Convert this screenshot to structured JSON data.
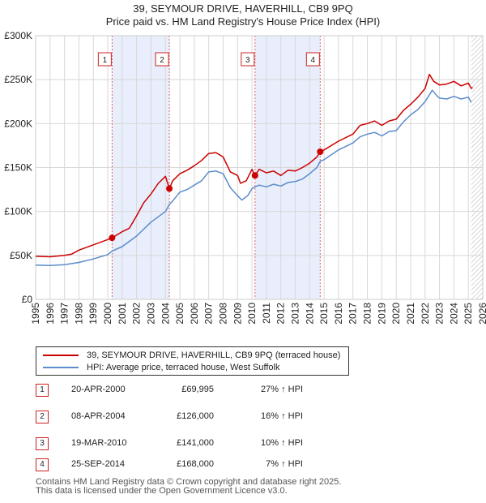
{
  "header": {
    "title": "39, SEYMOUR DRIVE, HAVERHILL, CB9 9PQ",
    "subtitle": "Price paid vs. HM Land Registry's House Price Index (HPI)"
  },
  "legend": {
    "property_label": "39, SEYMOUR DRIVE, HAVERHILL, CB9 9PQ (terraced house)",
    "hpi_label": "HPI: Average price, terraced house, West Suffolk"
  },
  "transactions": [
    {
      "num": "1",
      "date": "20-APR-2000",
      "price": "£69,995",
      "hpi": "27% ↑ HPI"
    },
    {
      "num": "2",
      "date": "08-APR-2004",
      "price": "£126,000",
      "hpi": "16% ↑ HPI"
    },
    {
      "num": "3",
      "date": "19-MAR-2010",
      "price": "£141,000",
      "hpi": "10% ↑ HPI"
    },
    {
      "num": "4",
      "date": "25-SEP-2014",
      "price": "£168,000",
      "hpi": "7% ↑ HPI"
    }
  ],
  "footer": {
    "line1": "Contains HM Land Registry data © Crown copyright and database right 2025.",
    "line2": "This data is licensed under the Open Government Licence v3.0."
  },
  "colors": {
    "property": "#cc0000",
    "hpi": "#5b8ccc",
    "band": "#e8eefb",
    "marker_line": "#e06060",
    "grid": "#d8d8d8"
  },
  "chart_data": {
    "type": "line",
    "title": "39, SEYMOUR DRIVE, HAVERHILL, CB9 9PQ",
    "subtitle": "Price paid vs. HM Land Registry's House Price Index (HPI)",
    "xlabel": "",
    "ylabel": "",
    "xlim": [
      1995,
      2026
    ],
    "ylim": [
      0,
      300000
    ],
    "x_ticks": [
      1995,
      1996,
      1997,
      1998,
      1999,
      2000,
      2001,
      2002,
      2003,
      2004,
      2005,
      2006,
      2007,
      2008,
      2009,
      2010,
      2011,
      2012,
      2013,
      2014,
      2015,
      2016,
      2017,
      2018,
      2019,
      2020,
      2021,
      2022,
      2023,
      2024,
      2025,
      2026
    ],
    "x_tick_labels": [
      "1995",
      "1996",
      "1997",
      "1998",
      "1999",
      "2000",
      "2001",
      "2002",
      "2003",
      "2004",
      "2005",
      "2006",
      "2007",
      "2008",
      "2009",
      "2010",
      "2011",
      "2012",
      "2013",
      "2014",
      "2015",
      "2016",
      "2017",
      "2018",
      "2019",
      "2020",
      "2021",
      "2022",
      "2023",
      "2024",
      "2025",
      "2026"
    ],
    "y_ticks": [
      0,
      50000,
      100000,
      150000,
      200000,
      250000,
      300000
    ],
    "y_tick_labels": [
      "£0",
      "£50K",
      "£100K",
      "£150K",
      "£200K",
      "£250K",
      "£300K"
    ],
    "grid": true,
    "shaded_ranges": [
      [
        2000.3,
        2004.27
      ],
      [
        2010.21,
        2014.73
      ]
    ],
    "future_hatch_from": 2025.2,
    "sale_markers": [
      {
        "label": "1",
        "x": 2000.3,
        "value": 69995
      },
      {
        "label": "2",
        "x": 2004.27,
        "value": 126000
      },
      {
        "label": "3",
        "x": 2010.21,
        "value": 141000
      },
      {
        "label": "4",
        "x": 2014.73,
        "value": 168000
      }
    ],
    "series": [
      {
        "name": "39, SEYMOUR DRIVE, HAVERHILL, CB9 9PQ (terraced house)",
        "x": [
          1995,
          1996,
          1997,
          1997.5,
          1998,
          1999,
          2000,
          2000.3,
          2001,
          2001.5,
          2002,
          2002.5,
          2003,
          2003.5,
          2004,
          2004.27,
          2004.5,
          2005,
          2005.5,
          2006,
          2006.5,
          2007,
          2007.5,
          2008,
          2008.5,
          2009,
          2009.2,
          2009.6,
          2010,
          2010.21,
          2010.5,
          2011,
          2011.5,
          2012,
          2012.5,
          2013,
          2013.5,
          2014,
          2014.5,
          2014.73,
          2015,
          2016,
          2017,
          2017.5,
          2018,
          2018.5,
          2019,
          2019.5,
          2020,
          2020.5,
          2021,
          2021.5,
          2022,
          2022.3,
          2022.6,
          2023,
          2023.5,
          2024,
          2024.5,
          2025,
          2025.2,
          2025.3
        ],
        "values": [
          49000,
          48500,
          50000,
          51500,
          56000,
          62000,
          68000,
          69995,
          77000,
          81000,
          95000,
          110000,
          120000,
          132000,
          140000,
          126000,
          135000,
          143000,
          147000,
          152000,
          158000,
          166000,
          167000,
          162000,
          145000,
          141000,
          132000,
          135000,
          148000,
          141000,
          148000,
          144000,
          146000,
          141000,
          147000,
          146000,
          150000,
          155000,
          162000,
          168000,
          170000,
          180000,
          188000,
          198000,
          200000,
          203000,
          198000,
          203000,
          205000,
          215000,
          222000,
          230000,
          240000,
          256000,
          248000,
          244000,
          245000,
          248000,
          243000,
          246000,
          240000,
          241000
        ]
      },
      {
        "name": "HPI: Average price, terraced house, West Suffolk",
        "x": [
          1995,
          1996,
          1997,
          1998,
          1999,
          2000,
          2000.3,
          2001,
          2002,
          2003,
          2004,
          2004.27,
          2004.5,
          2005,
          2005.5,
          2006,
          2006.5,
          2007,
          2007.5,
          2008,
          2008.5,
          2009,
          2009.3,
          2009.7,
          2010,
          2010.21,
          2010.5,
          2011,
          2011.5,
          2012,
          2012.5,
          2013,
          2013.5,
          2014,
          2014.5,
          2014.73,
          2015,
          2016,
          2017,
          2017.5,
          2018,
          2018.5,
          2019,
          2019.5,
          2020,
          2020.5,
          2021,
          2021.5,
          2022,
          2022.5,
          2022.8,
          2023,
          2023.5,
          2024,
          2024.5,
          2025,
          2025.2
        ],
        "values": [
          39000,
          38500,
          39500,
          42000,
          46000,
          51000,
          55000,
          60000,
          72000,
          88000,
          100000,
          108000,
          112000,
          122000,
          125000,
          130000,
          135000,
          145000,
          146000,
          143000,
          127000,
          118000,
          113000,
          118000,
          126000,
          128000,
          130000,
          128000,
          131000,
          129000,
          133000,
          134000,
          137000,
          143000,
          150000,
          157000,
          159000,
          170000,
          178000,
          185000,
          188000,
          190000,
          186000,
          191000,
          192000,
          202000,
          210000,
          216000,
          225000,
          238000,
          232000,
          229000,
          228000,
          231000,
          228000,
          230000,
          224000
        ]
      }
    ]
  }
}
